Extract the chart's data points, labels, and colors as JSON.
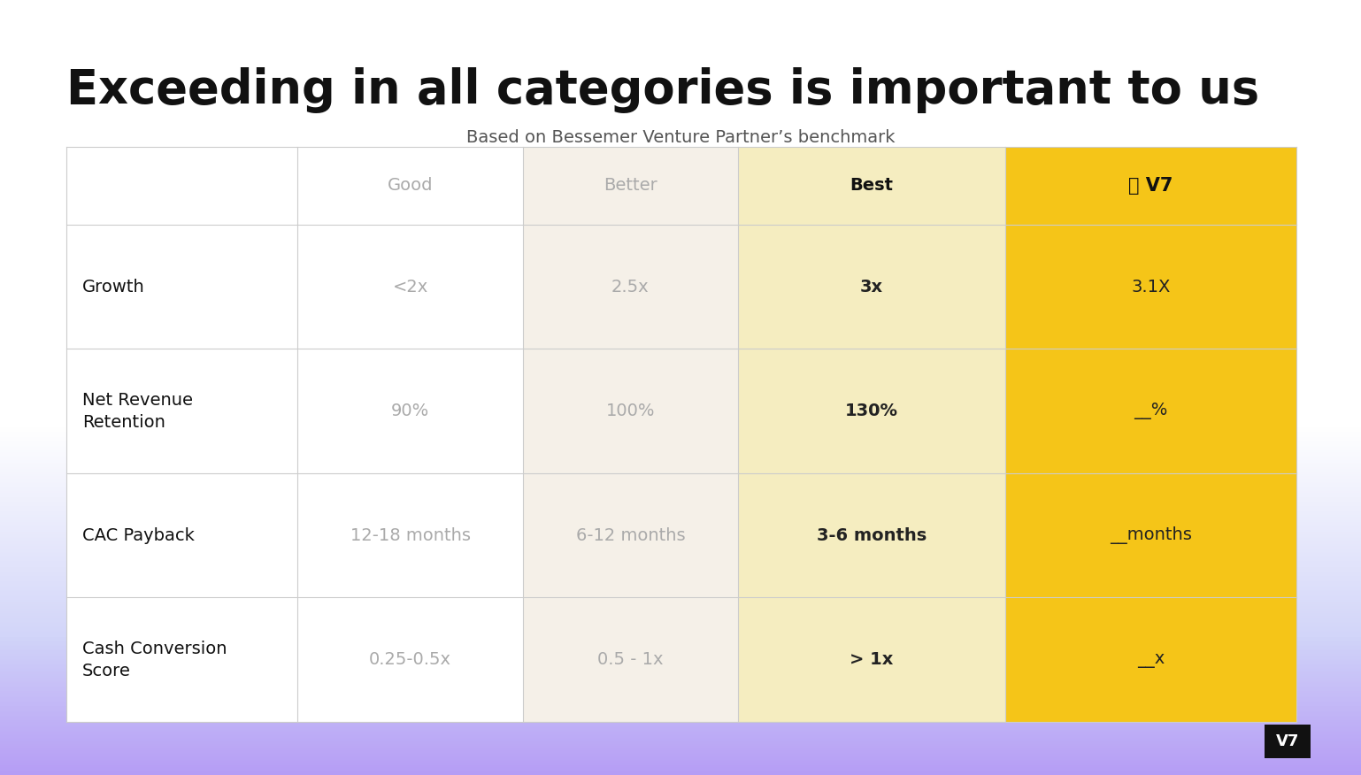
{
  "title": "Exceeding in all categories is important to us",
  "subtitle": "Based on Bessemer Venture Partner’s benchmark",
  "header_labels": [
    "",
    "Good",
    "Better",
    "Best",
    "⭐ V7"
  ],
  "rows": [
    [
      "Growth",
      "<2x",
      "2.5x",
      "3x",
      "3.1X"
    ],
    [
      "Net Revenue\nRetention",
      "90%",
      "100%",
      "130%",
      "__%"
    ],
    [
      "CAC Payback",
      "12-18 months",
      "6-12 months",
      "3-6 months",
      "__months"
    ],
    [
      "Cash Conversion\nScore",
      "0.25-0.5x",
      "0.5 - 1x",
      "> 1x",
      "__x"
    ]
  ],
  "col_bg_colors": [
    "#ffffff",
    "#ffffff",
    "#f5f0e8",
    "#f5edc0",
    "#f5c518"
  ],
  "header_text_colors": [
    "#111111",
    "#aaaaaa",
    "#aaaaaa",
    "#111111",
    "#111111"
  ],
  "data_text_colors": [
    "#111111",
    "#aaaaaa",
    "#aaaaaa",
    "#222222",
    "#222222"
  ],
  "data_fontweights": [
    "normal",
    "normal",
    "normal",
    "bold",
    "normal"
  ],
  "header_fontweights": [
    "normal",
    "normal",
    "normal",
    "bold",
    "bold"
  ],
  "grid_color": "#cccccc",
  "title_fontsize": 38,
  "subtitle_fontsize": 14,
  "cell_fontsize": 14,
  "header_fontsize": 14,
  "bg_top_color": "#ffffff",
  "bg_bottom_color": "#b8c4f0",
  "bg_mid_color": "#d0c8f0",
  "logo_bg": "#111111",
  "logo_text": "V7",
  "logo_text_color": "#ffffff"
}
